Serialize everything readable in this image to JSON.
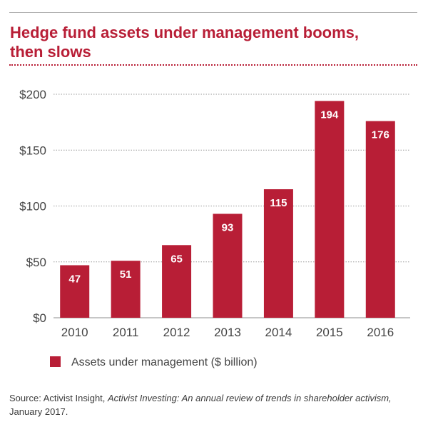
{
  "header": {
    "title_line1": "Hedge fund assets under management booms,",
    "title_line2": "then slows"
  },
  "chart_data": {
    "type": "bar",
    "title": "Hedge fund assets under management booms, then slows",
    "categories": [
      "2010",
      "2011",
      "2012",
      "2013",
      "2014",
      "2015",
      "2016"
    ],
    "series": [
      {
        "name": "Assets under management ($ billion)",
        "values": [
          47,
          51,
          65,
          93,
          115,
          194,
          176
        ]
      }
    ],
    "data_labels": [
      "47",
      "51",
      "65",
      "93",
      "115",
      "194",
      "176"
    ],
    "y_ticks": [
      "$0",
      "$50",
      "$100",
      "$150",
      "$200"
    ],
    "y_tick_values": [
      0,
      50,
      100,
      150,
      200
    ],
    "ylim": [
      0,
      200
    ],
    "grid": true,
    "legend_position": "bottom-left",
    "bar_color": "#b81e36",
    "label_color": "#ffffff"
  },
  "legend": {
    "label": "Assets under management ($ billion)"
  },
  "footer": {
    "source_prefix": "Source: Activist Insight, ",
    "source_italic": "Activist Investing: An annual review of trends in shareholder activism,",
    "source_suffix": " January 2017."
  }
}
